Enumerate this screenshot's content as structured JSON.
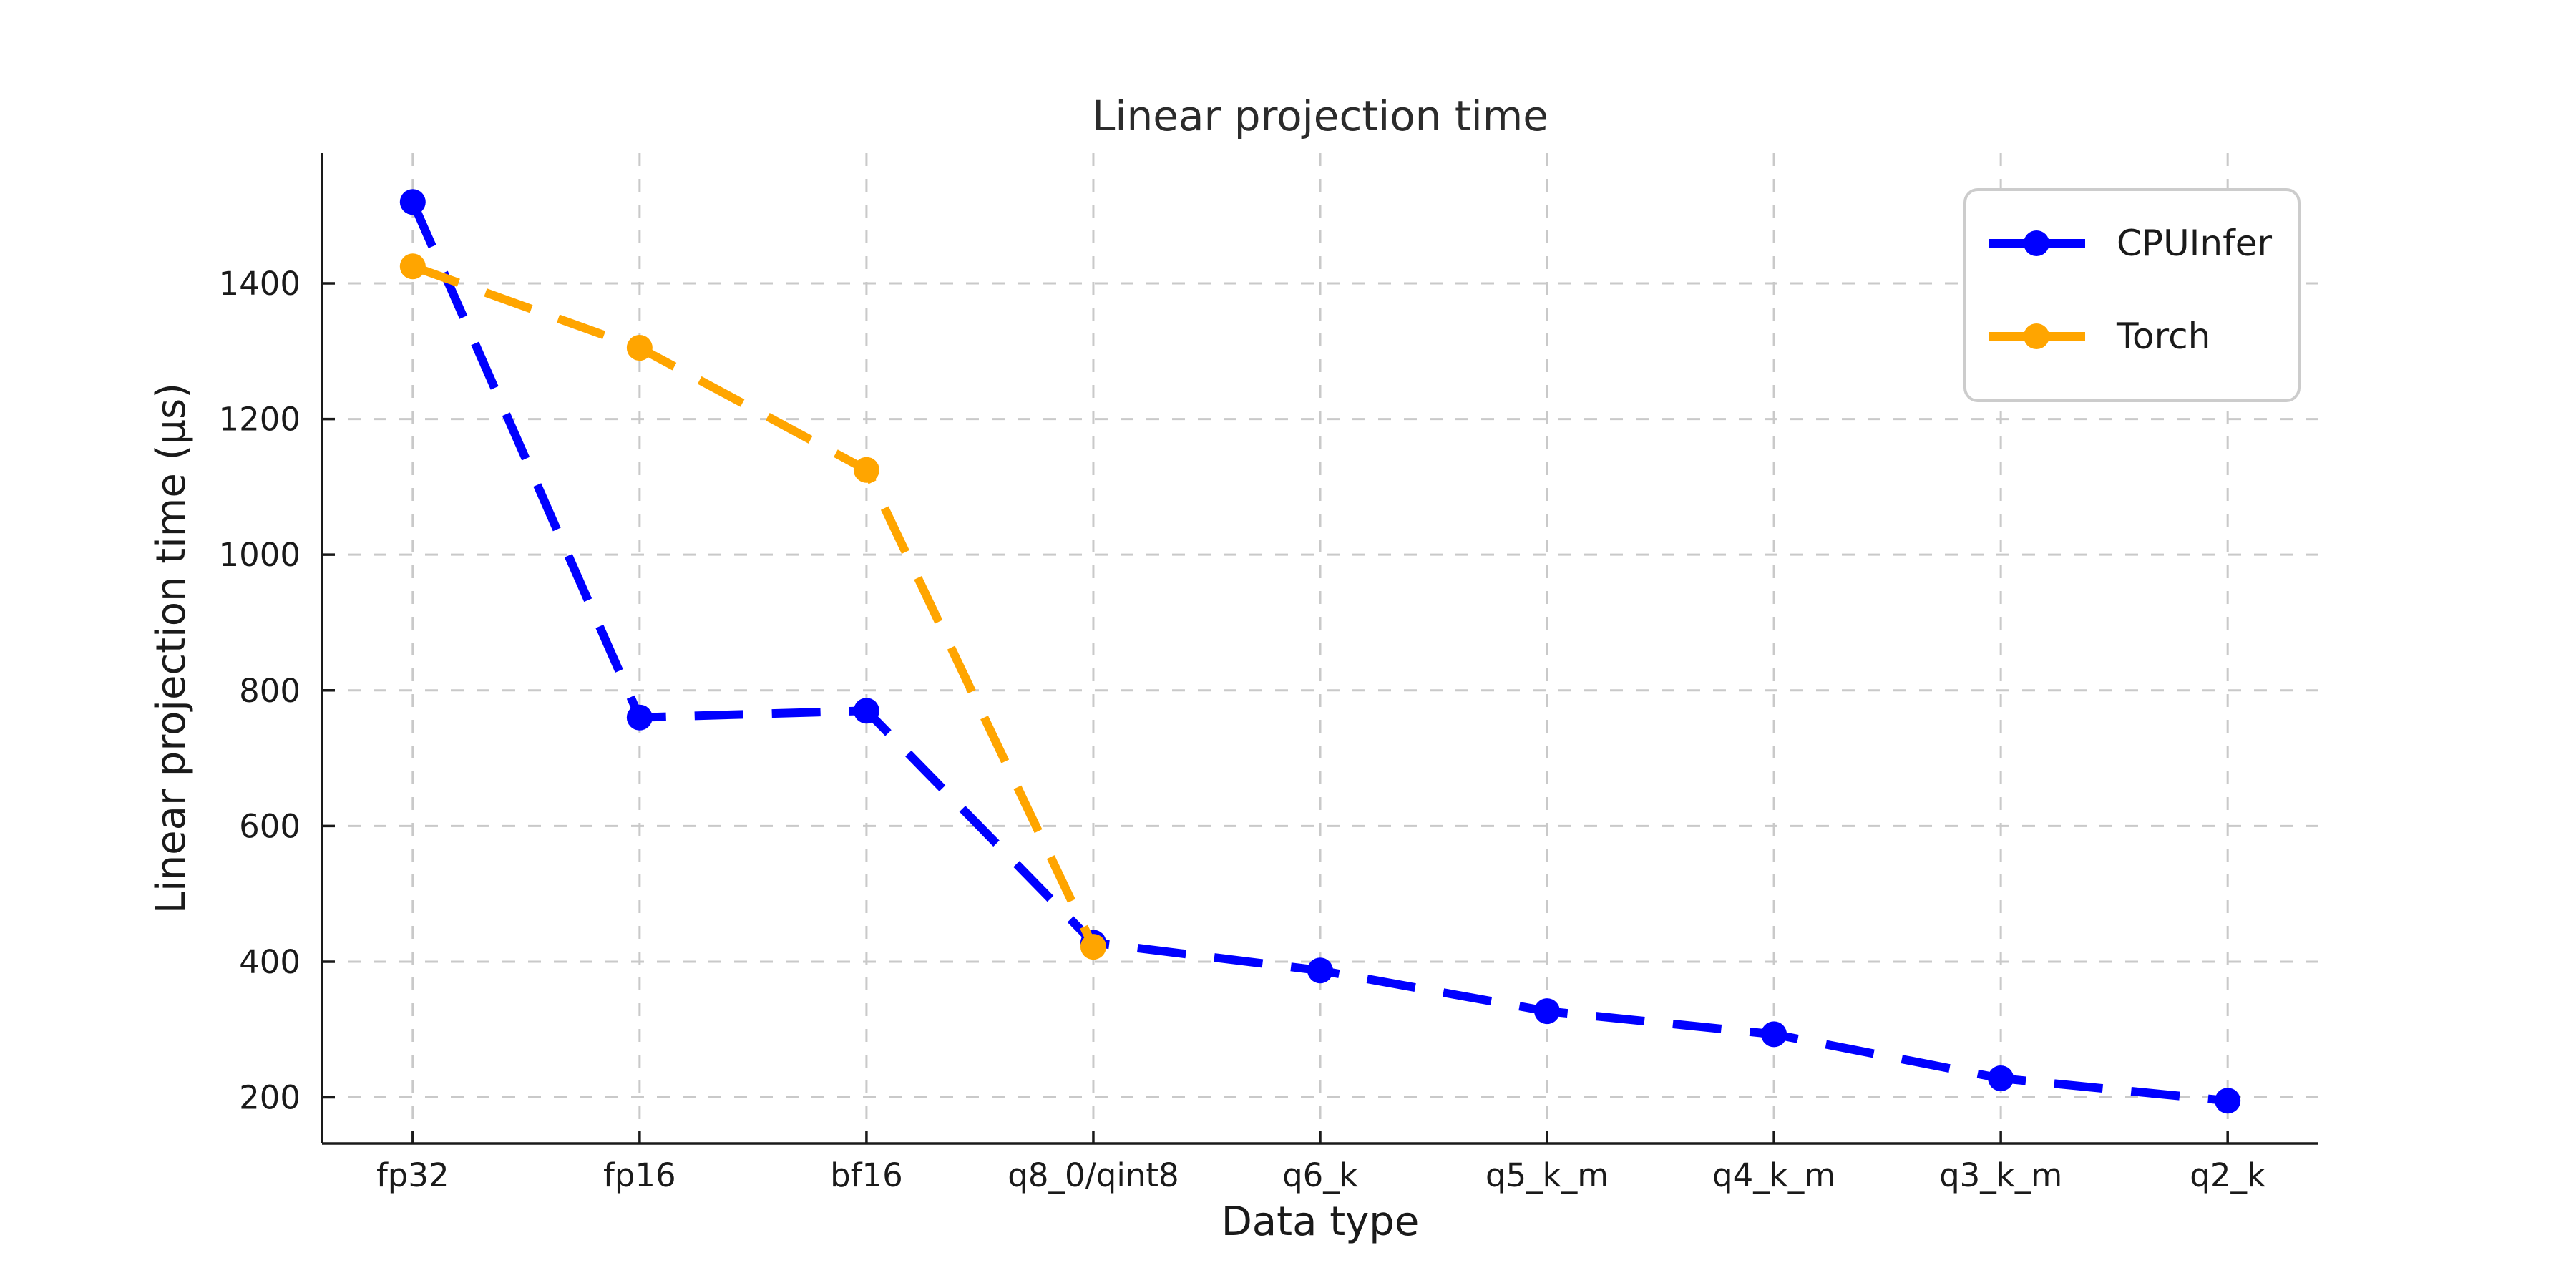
{
  "chart_data": {
    "type": "line",
    "title": "Linear projection time",
    "xlabel": "Data type",
    "ylabel": "Linear projection time (μs)",
    "categories": [
      "fp32",
      "fp16",
      "bf16",
      "q8_0/qint8",
      "q6_k",
      "q5_k_m",
      "q4_k_m",
      "q3_k_m",
      "q2_k"
    ],
    "series": [
      {
        "name": "CPUInfer",
        "color": "#0000ff",
        "values": [
          1520,
          760,
          770,
          428,
          387,
          327,
          293,
          228,
          195
        ]
      },
      {
        "name": "Torch",
        "color": "#ffa500",
        "values": [
          1425,
          1305,
          1125,
          422,
          null,
          null,
          null,
          null,
          null
        ]
      }
    ],
    "yticks": [
      200,
      400,
      600,
      800,
      1000,
      1200,
      1400
    ],
    "ylim": [
      132,
      1592
    ],
    "grid": true,
    "grid_style": "dashed",
    "line_style": "dashed",
    "marker": "circle",
    "legend_position": "upper right",
    "legend_entries": [
      "CPUInfer",
      "Torch"
    ]
  },
  "colors": {
    "background": "#ffffff",
    "grid": "#c9c9c9",
    "spine": "#1a1a1a",
    "text": "#1a1a1a",
    "legend_border": "#cccccc",
    "series_cpuinfer": "#0000ff",
    "series_torch": "#ffa500"
  }
}
